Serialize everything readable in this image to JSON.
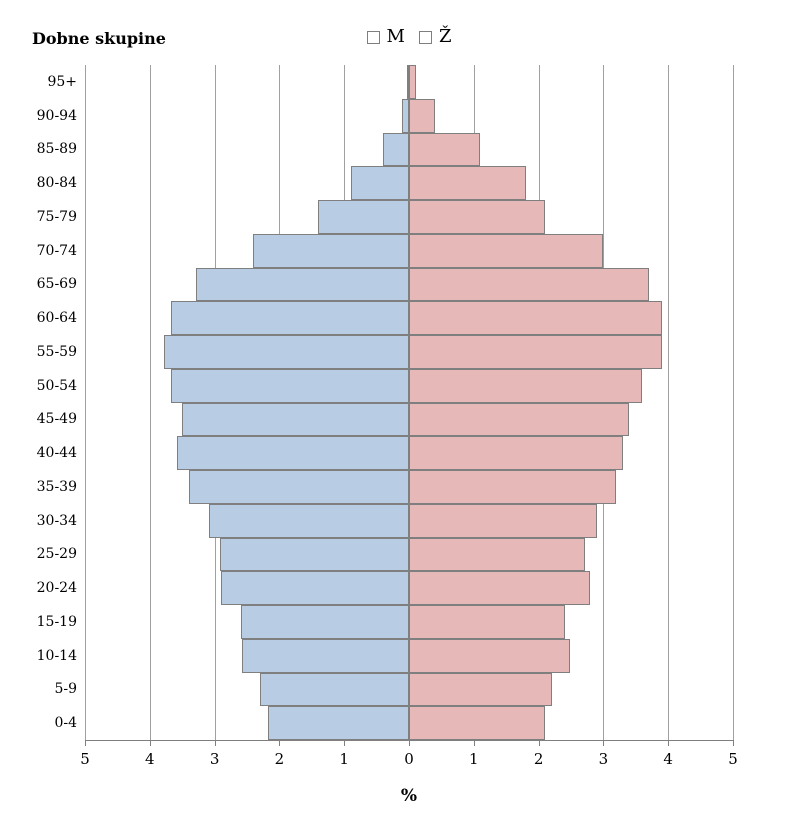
{
  "chart_data": {
    "type": "bar",
    "subtype": "population-pyramid",
    "title": "Dobne skupine",
    "xlabel": "%",
    "legend_position": "top-center",
    "grid": "vertical",
    "categories_top_to_bottom": [
      "95+",
      "90-94",
      "85-89",
      "80-84",
      "75-79",
      "70-74",
      "65-69",
      "60-64",
      "55-59",
      "50-54",
      "45-49",
      "40-44",
      "35-39",
      "30-34",
      "25-29",
      "20-24",
      "15-19",
      "10-14",
      "5-9",
      "0-4"
    ],
    "series": [
      {
        "name": "M",
        "side": "left",
        "color": "#b8cce4",
        "values": [
          0.03,
          0.11,
          0.4,
          0.9,
          1.4,
          2.4,
          3.28,
          3.68,
          3.78,
          3.68,
          3.5,
          3.58,
          3.4,
          3.08,
          2.92,
          2.9,
          2.6,
          2.57,
          2.3,
          2.18
        ]
      },
      {
        "name": "Ž",
        "side": "right",
        "color": "#e6b9b8",
        "values": [
          0.11,
          0.4,
          1.1,
          1.8,
          2.1,
          3.0,
          3.7,
          3.9,
          3.9,
          3.6,
          3.4,
          3.3,
          3.2,
          2.9,
          2.71,
          2.8,
          2.41,
          2.49,
          2.21,
          2.1
        ]
      }
    ],
    "x_axis": {
      "tick_labels": [
        "5",
        "4",
        "3",
        "2",
        "1",
        "0",
        "1",
        "2",
        "3",
        "4",
        "5"
      ],
      "max_abs_value": 5,
      "unit": "percent"
    }
  },
  "colors": {
    "male_fill": "#b8cce4",
    "female_fill": "#e6b9b8",
    "bar_border": "#7f7f7f",
    "gridline": "#a0a0a0",
    "axis": "#7f7f7f",
    "text": "#000000",
    "background": "#ffffff"
  }
}
